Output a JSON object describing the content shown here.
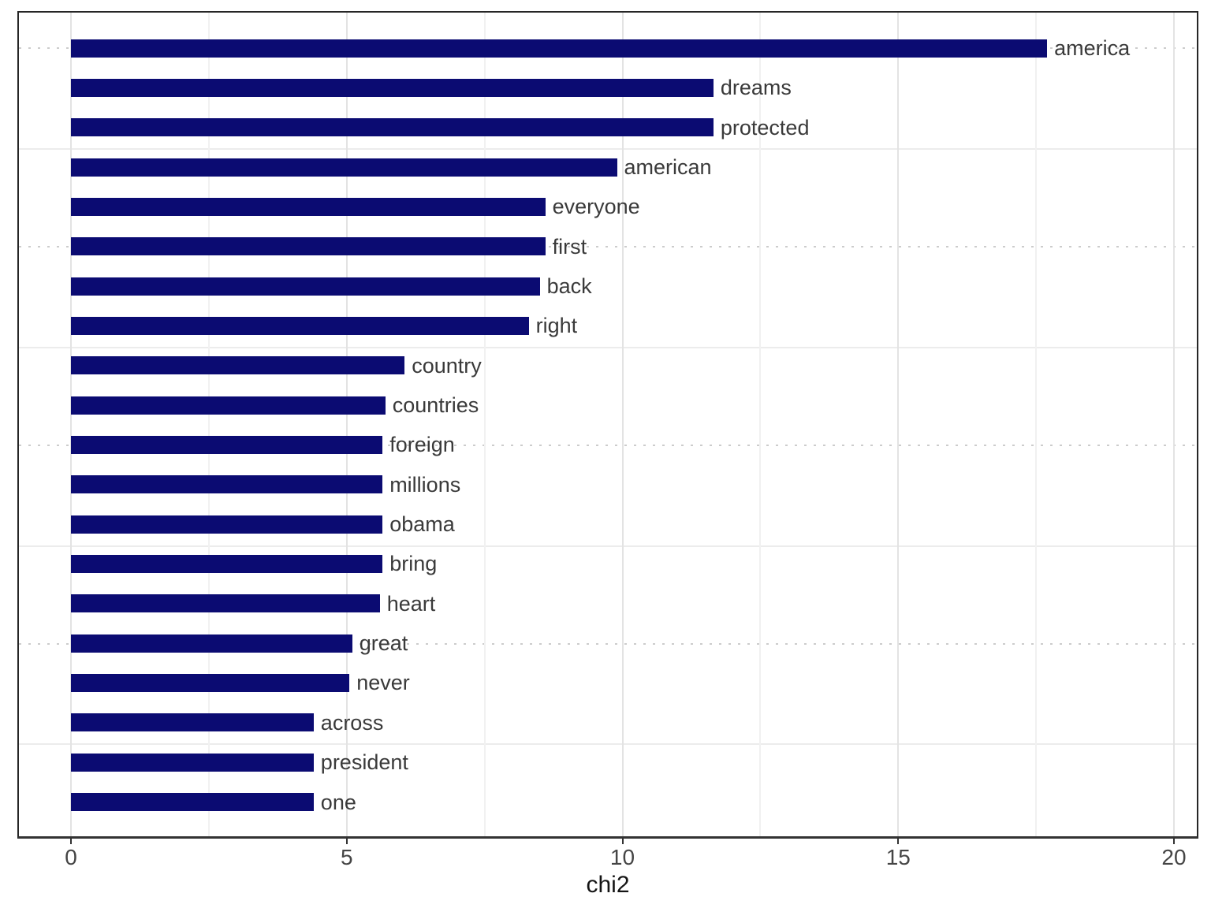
{
  "chart_data": {
    "type": "bar",
    "orientation": "horizontal",
    "title": "",
    "xlabel": "chi2",
    "ylabel": "",
    "xlim": [
      0,
      20
    ],
    "x_ticks": [
      0,
      5,
      10,
      15,
      20
    ],
    "x_tick_labels": [
      "0",
      "5",
      "10",
      "15",
      "20"
    ],
    "x_minor_ticks": [
      2.5,
      7.5,
      12.5,
      17.5
    ],
    "grid": true,
    "legend": false,
    "bar_color": "#0b0b72",
    "categories": [
      "america",
      "dreams",
      "protected",
      "american",
      "everyone",
      "first",
      "back",
      "right",
      "country",
      "countries",
      "foreign",
      "millions",
      "obama",
      "bring",
      "heart",
      "great",
      "never",
      "across",
      "president",
      "one"
    ],
    "values": [
      17.7,
      11.65,
      11.65,
      9.9,
      8.6,
      8.6,
      8.5,
      8.3,
      6.05,
      5.7,
      5.65,
      5.65,
      5.65,
      5.65,
      5.6,
      5.1,
      5.05,
      4.4,
      4.4,
      4.4
    ]
  }
}
